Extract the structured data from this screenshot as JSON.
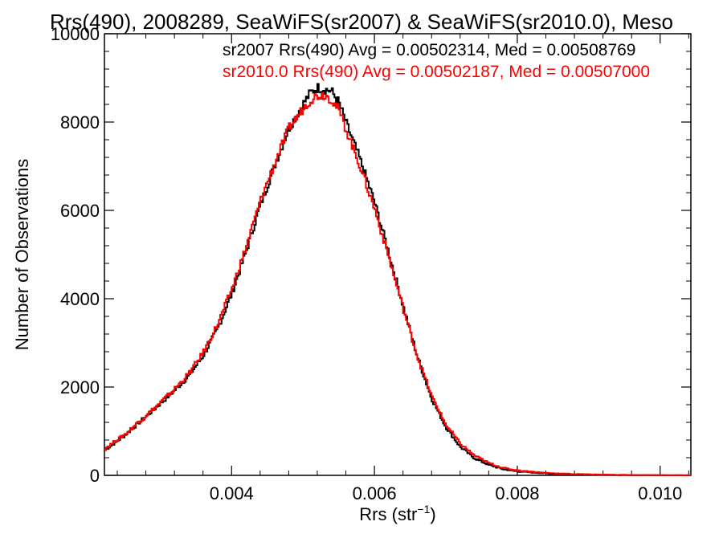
{
  "chart_data": {
    "type": "histogram",
    "title": "Rrs(490), 2008289, SeaWiFS(sr2007) & SeaWiFS(sr2010.0), Meso",
    "xlabel": "Rrs (str",
    "xlabel_sup": "−1",
    "xlabel_end": ")",
    "ylabel": "Number of Observations",
    "xlim": [
      0.00222,
      0.01043
    ],
    "ylim": [
      0,
      10000
    ],
    "x_ticks": [
      0.004,
      0.006,
      0.008,
      0.01
    ],
    "x_tick_labels": [
      "0.004",
      "0.006",
      "0.008",
      "0.010"
    ],
    "y_ticks": [
      0,
      2000,
      4000,
      6000,
      8000,
      10000
    ],
    "y_tick_labels": [
      "0",
      "2000",
      "4000",
      "6000",
      "8000",
      "10000"
    ],
    "grid": false,
    "legend_position": "top-right",
    "series": [
      {
        "name": "sr2007",
        "color": "#000000",
        "legend": "sr2007 Rrs(490) Avg = 0.00502314, Med = 0.00508769",
        "points": [
          [
            0.00222,
            560
          ],
          [
            0.0025,
            900
          ],
          [
            0.0028,
            1330
          ],
          [
            0.003,
            1620
          ],
          [
            0.0032,
            1920
          ],
          [
            0.0034,
            2250
          ],
          [
            0.0036,
            2700
          ],
          [
            0.0038,
            3300
          ],
          [
            0.004,
            4100
          ],
          [
            0.0042,
            5050
          ],
          [
            0.0044,
            6100
          ],
          [
            0.0046,
            7000
          ],
          [
            0.0048,
            7850
          ],
          [
            0.005,
            8400
          ],
          [
            0.0051,
            8650
          ],
          [
            0.0052,
            8780
          ],
          [
            0.0053,
            8750
          ],
          [
            0.0054,
            8700
          ],
          [
            0.0055,
            8450
          ],
          [
            0.0056,
            8000
          ],
          [
            0.0058,
            7150
          ],
          [
            0.006,
            6200
          ],
          [
            0.0062,
            5050
          ],
          [
            0.0064,
            3850
          ],
          [
            0.0066,
            2700
          ],
          [
            0.0068,
            1750
          ],
          [
            0.007,
            1100
          ],
          [
            0.0072,
            650
          ],
          [
            0.0074,
            390
          ],
          [
            0.0076,
            240
          ],
          [
            0.0078,
            140
          ],
          [
            0.008,
            90
          ],
          [
            0.0084,
            45
          ],
          [
            0.0088,
            22
          ],
          [
            0.0092,
            12
          ],
          [
            0.0096,
            6
          ],
          [
            0.01,
            3
          ],
          [
            0.01043,
            1
          ]
        ]
      },
      {
        "name": "sr2010.0",
        "color": "#ff0000",
        "legend": "sr2010.0 Rrs(490) Avg = 0.00502187, Med = 0.00507000",
        "points": [
          [
            0.00222,
            600
          ],
          [
            0.0025,
            920
          ],
          [
            0.0028,
            1350
          ],
          [
            0.003,
            1640
          ],
          [
            0.0032,
            1950
          ],
          [
            0.0034,
            2300
          ],
          [
            0.0036,
            2770
          ],
          [
            0.0038,
            3400
          ],
          [
            0.004,
            4200
          ],
          [
            0.0042,
            5150
          ],
          [
            0.0044,
            6200
          ],
          [
            0.0046,
            7050
          ],
          [
            0.0048,
            7850
          ],
          [
            0.005,
            8300
          ],
          [
            0.0051,
            8500
          ],
          [
            0.0052,
            8600
          ],
          [
            0.0053,
            8620
          ],
          [
            0.0054,
            8520
          ],
          [
            0.0055,
            8280
          ],
          [
            0.0056,
            7850
          ],
          [
            0.0058,
            7000
          ],
          [
            0.006,
            6050
          ],
          [
            0.0062,
            4950
          ],
          [
            0.0064,
            3800
          ],
          [
            0.0066,
            2700
          ],
          [
            0.0068,
            1800
          ],
          [
            0.007,
            1150
          ],
          [
            0.0072,
            720
          ],
          [
            0.0074,
            450
          ],
          [
            0.0076,
            280
          ],
          [
            0.0078,
            170
          ],
          [
            0.008,
            110
          ],
          [
            0.0084,
            55
          ],
          [
            0.0088,
            28
          ],
          [
            0.0092,
            15
          ],
          [
            0.0096,
            8
          ],
          [
            0.01,
            4
          ],
          [
            0.01043,
            2
          ]
        ]
      }
    ]
  }
}
